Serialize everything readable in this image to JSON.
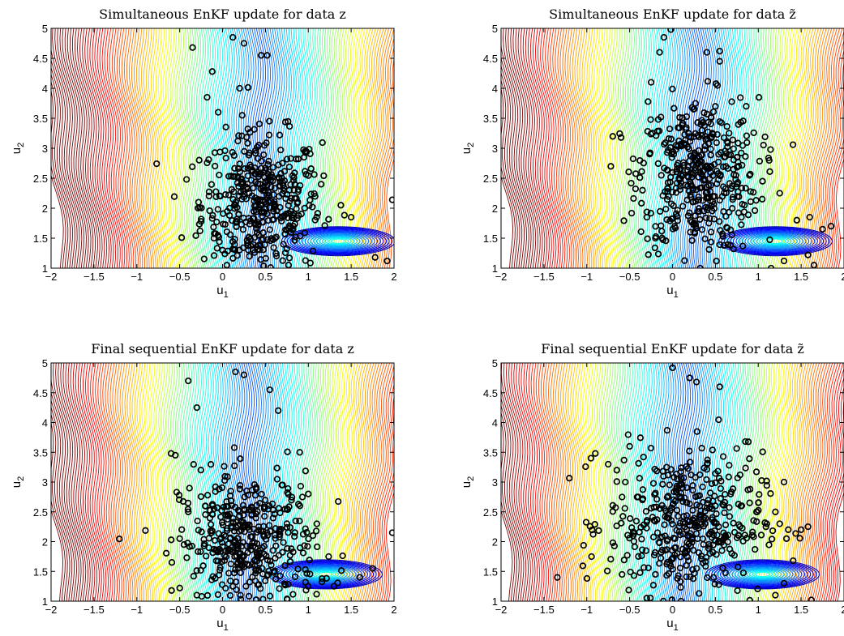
{
  "chart_data": [
    {
      "type": "scatter",
      "title": "Simultaneous EnKF update for data z",
      "xlabel": "u1",
      "ylabel": "u2",
      "xlim": [
        -2,
        2
      ],
      "ylim": [
        1,
        5
      ],
      "xticks": [
        "-2",
        "-1.5",
        "-1",
        "-0.5",
        "0",
        "0.5",
        "1",
        "1.5",
        "2"
      ],
      "yticks": [
        "1",
        "1.5",
        "2",
        "2.5",
        "3",
        "3.5",
        "4",
        "4.5",
        "5"
      ],
      "grid": false,
      "background": "filled contour lines (jet colormap)",
      "cloud": {
        "center": [
          0.45,
          2.05
        ],
        "spread": [
          0.35,
          0.75
        ]
      },
      "points": [
        [
          -0.35,
          4.68
        ],
        [
          -0.42,
          2.48
        ],
        [
          -0.28,
          2.1
        ],
        [
          -0.25,
          1.78
        ],
        [
          1.78,
          1.18
        ],
        [
          1.92,
          1.12
        ],
        [
          1.98,
          2.14
        ],
        [
          0.12,
          4.85
        ],
        [
          0.25,
          4.75
        ],
        [
          0.52,
          4.55
        ],
        [
          0.45,
          4.55
        ],
        [
          0.2,
          4.0
        ],
        [
          -0.12,
          4.28
        ],
        [
          -0.18,
          3.85
        ],
        [
          -0.05,
          3.6
        ],
        [
          0.95,
          2.85
        ],
        [
          1.15,
          2.4
        ],
        [
          1.38,
          2.05
        ],
        [
          1.5,
          1.85
        ],
        [
          -0.1,
          1.5
        ],
        [
          0.0,
          1.3
        ],
        [
          0.05,
          1.05
        ]
      ]
    },
    {
      "type": "scatter",
      "title": "Simultaneous EnKF update for data z̃",
      "xlabel": "u1",
      "ylabel": "u2",
      "xlim": [
        -2,
        2
      ],
      "ylim": [
        1,
        5
      ],
      "xticks": [
        "-2",
        "-1.5",
        "-1",
        "-0.5",
        "0",
        "0.5",
        "1",
        "1.5",
        "2"
      ],
      "yticks": [
        "1",
        "1.5",
        "2",
        "2.5",
        "3",
        "3.5",
        "4",
        "4.5",
        "5"
      ],
      "grid": false,
      "background": "filled contour lines (jet colormap)",
      "cloud": {
        "center": [
          0.3,
          2.55
        ],
        "spread": [
          0.35,
          0.8
        ]
      },
      "points": [
        [
          -0.02,
          4.98
        ],
        [
          -0.6,
          3.18
        ],
        [
          1.85,
          1.7
        ],
        [
          1.75,
          1.65
        ],
        [
          1.6,
          1.85
        ],
        [
          1.45,
          1.8
        ],
        [
          1.65,
          1.05
        ],
        [
          1.58,
          1.22
        ],
        [
          1.3,
          1.12
        ],
        [
          1.15,
          1.0
        ],
        [
          0.55,
          4.62
        ],
        [
          0.55,
          4.45
        ],
        [
          0.4,
          4.6
        ],
        [
          -0.15,
          4.6
        ],
        [
          -0.1,
          4.85
        ],
        [
          -0.25,
          4.1
        ],
        [
          -0.35,
          2.3
        ],
        [
          -0.3,
          1.85
        ],
        [
          1.25,
          2.25
        ],
        [
          1.05,
          2.45
        ],
        [
          -0.2,
          1.5
        ]
      ]
    },
    {
      "type": "scatter",
      "title": "Final sequential EnKF update for data z",
      "xlabel": "u1",
      "ylabel": "u2",
      "xlim": [
        -2,
        2
      ],
      "ylim": [
        1,
        5
      ],
      "xticks": [
        "-2",
        "-1.5",
        "-1",
        "-0.5",
        "0",
        "0.5",
        "1",
        "1.5",
        "2"
      ],
      "yticks": [
        "1",
        "1.5",
        "2",
        "2.5",
        "3",
        "3.5",
        "4",
        "4.5",
        "5"
      ],
      "grid": false,
      "background": "filled contour lines (jet colormap)",
      "cloud": {
        "center": [
          0.3,
          1.95
        ],
        "spread": [
          0.4,
          0.75
        ]
      },
      "points": [
        [
          -0.6,
          3.48
        ],
        [
          -0.55,
          3.45
        ],
        [
          -0.4,
          4.7
        ],
        [
          -0.3,
          4.25
        ],
        [
          -0.5,
          2.05
        ],
        [
          -0.45,
          1.95
        ],
        [
          -0.4,
          2.5
        ],
        [
          -0.3,
          1.1
        ],
        [
          1.98,
          2.15
        ],
        [
          1.75,
          1.55
        ],
        [
          1.6,
          1.4
        ],
        [
          1.3,
          1.25
        ],
        [
          0.15,
          4.85
        ],
        [
          0.25,
          4.8
        ],
        [
          0.55,
          4.55
        ],
        [
          0.65,
          4.2
        ],
        [
          0.9,
          3.5
        ],
        [
          1.0,
          2.8
        ],
        [
          1.1,
          2.3
        ],
        [
          -0.2,
          2.6
        ]
      ]
    },
    {
      "type": "scatter",
      "title": "Final sequential EnKF update for data z̃",
      "xlabel": "u1",
      "ylabel": "u2",
      "xlim": [
        -2,
        2
      ],
      "ylim": [
        1,
        5
      ],
      "xticks": [
        "-2",
        "-1.5",
        "-1",
        "-0.5",
        "0",
        "0.5",
        "1",
        "1.5",
        "2"
      ],
      "yticks": [
        "1",
        "1.5",
        "2",
        "2.5",
        "3",
        "3.5",
        "4",
        "4.5",
        "5"
      ],
      "grid": false,
      "background": "filled contour lines (jet colormap)",
      "cloud": {
        "center": [
          0.15,
          2.3
        ],
        "spread": [
          0.45,
          0.75
        ]
      },
      "points": [
        [
          0.0,
          4.92
        ],
        [
          0.2,
          4.75
        ],
        [
          0.55,
          4.6
        ],
        [
          0.28,
          4.68
        ],
        [
          -0.9,
          3.48
        ],
        [
          -0.75,
          3.3
        ],
        [
          -0.65,
          3.2
        ],
        [
          -0.55,
          3.0
        ],
        [
          -0.5,
          3.6
        ],
        [
          -0.4,
          2.75
        ],
        [
          1.3,
          3.0
        ],
        [
          1.2,
          2.5
        ],
        [
          1.1,
          2.3
        ],
        [
          1.25,
          2.3
        ],
        [
          1.35,
          2.2
        ],
        [
          1.5,
          2.2
        ],
        [
          1.58,
          2.25
        ],
        [
          1.62,
          1.02
        ],
        [
          1.3,
          1.3
        ],
        [
          1.2,
          1.1
        ],
        [
          0.85,
          3.68
        ],
        [
          0.98,
          2.5
        ],
        [
          -0.2,
          1.45
        ],
        [
          -0.3,
          1.05
        ],
        [
          0.1,
          1.0
        ]
      ]
    }
  ],
  "colors": {
    "jet": [
      "#00008f",
      "#0000ff",
      "#007fff",
      "#00ffff",
      "#7fff7f",
      "#ffff00",
      "#ff7f00",
      "#ff0000",
      "#7f0000"
    ],
    "marker": "#000000"
  }
}
